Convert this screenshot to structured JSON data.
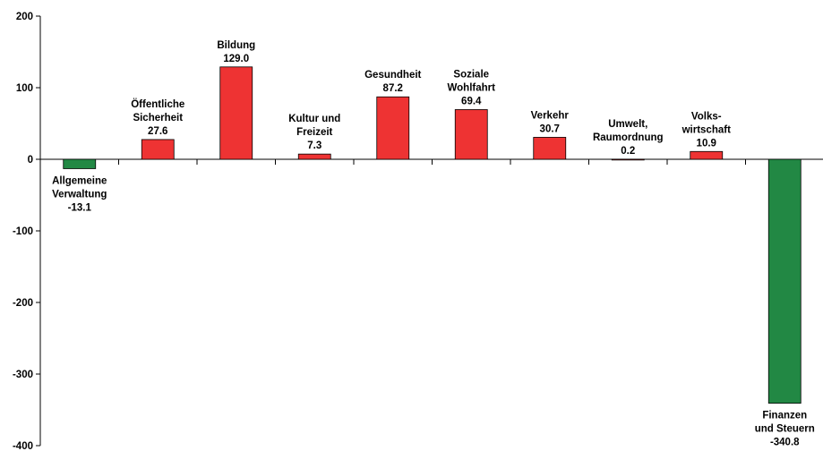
{
  "chart_data": {
    "type": "bar",
    "title": "",
    "xlabel": "",
    "ylabel": "",
    "ylim": [
      -400,
      200
    ],
    "yticks": [
      200,
      100,
      0,
      -100,
      -200,
      -300,
      -400
    ],
    "grid": false,
    "legend": "none",
    "colors": {
      "positive": "#ee3333",
      "negative": "#228844",
      "axis": "#000000"
    },
    "categories": [
      [
        "Allgemeine",
        "Verwaltung"
      ],
      [
        "Öffentliche",
        "Sicherheit"
      ],
      [
        "Bildung"
      ],
      [
        "Kultur und",
        "Freizeit"
      ],
      [
        "Gesundheit"
      ],
      [
        "Soziale",
        "Wohlfahrt"
      ],
      [
        "Verkehr"
      ],
      [
        "Umwelt,",
        "Raumordnung"
      ],
      [
        "Volks-",
        "wirtschaft"
      ],
      [
        "Finanzen",
        "und Steuern"
      ]
    ],
    "values": [
      -13.1,
      27.6,
      129.0,
      7.3,
      87.2,
      69.4,
      30.7,
      0.2,
      10.9,
      -340.8
    ],
    "value_labels": [
      "-13.1",
      "27.6",
      "129.0",
      "7.3",
      "87.2",
      "69.4",
      "30.7",
      "0.2",
      "10.9",
      "-340.8"
    ]
  }
}
